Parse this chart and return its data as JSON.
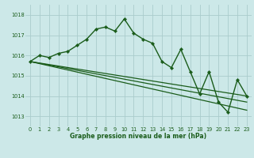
{
  "background_color": "#cce8e8",
  "grid_color": "#aacccc",
  "line_color": "#1a5c1a",
  "title": "Graphe pression niveau de la mer (hPa)",
  "xlim": [
    -0.5,
    23.5
  ],
  "ylim": [
    1012.5,
    1018.5
  ],
  "yticks": [
    1013,
    1014,
    1015,
    1016,
    1017,
    1018
  ],
  "xticks": [
    0,
    1,
    2,
    3,
    4,
    5,
    6,
    7,
    8,
    9,
    10,
    11,
    12,
    13,
    14,
    15,
    16,
    17,
    18,
    19,
    20,
    21,
    22,
    23
  ],
  "series": [
    {
      "x": [
        0,
        1,
        2,
        3,
        4,
        5,
        6,
        7,
        8,
        9,
        10,
        11,
        12,
        13,
        14,
        15,
        16,
        17,
        18,
        19,
        20,
        21,
        22,
        23
      ],
      "y": [
        1015.7,
        1016.0,
        1015.9,
        1016.1,
        1016.2,
        1016.5,
        1016.8,
        1017.3,
        1017.4,
        1017.2,
        1017.8,
        1017.1,
        1016.8,
        1016.6,
        1015.7,
        1015.4,
        1016.3,
        1015.2,
        1014.1,
        1015.2,
        1013.7,
        1013.2,
        1014.8,
        1014.0
      ],
      "marker": "D",
      "linewidth": 1.0,
      "markersize": 2.2,
      "has_marker": true
    },
    {
      "x": [
        0,
        23
      ],
      "y": [
        1015.7,
        1014.0
      ],
      "marker": null,
      "linewidth": 0.9,
      "has_marker": false
    },
    {
      "x": [
        0,
        23
      ],
      "y": [
        1015.7,
        1013.7
      ],
      "marker": null,
      "linewidth": 0.9,
      "has_marker": false
    },
    {
      "x": [
        0,
        23
      ],
      "y": [
        1015.7,
        1013.3
      ],
      "marker": null,
      "linewidth": 0.9,
      "has_marker": false
    }
  ],
  "xlabel_fontsize": 5.5,
  "tick_fontsize": 4.8,
  "xlabel_fontweight": "bold"
}
